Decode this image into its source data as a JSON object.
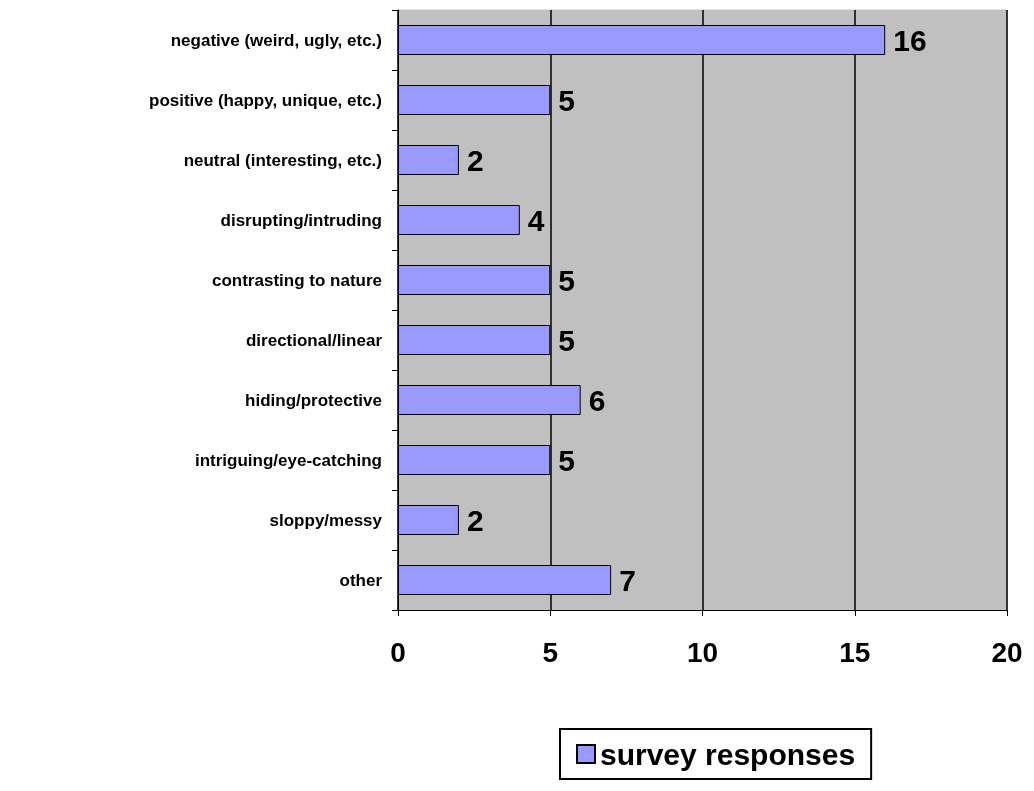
{
  "chart_data": {
    "type": "bar",
    "orientation": "horizontal",
    "categories": [
      "negative (weird, ugly, etc.)",
      "positive (happy, unique, etc.)",
      "neutral (interesting, etc.)",
      "disrupting/intruding",
      "contrasting to nature",
      "directional/linear",
      "hiding/protective",
      "intriguing/eye-catching",
      "sloppy/messy",
      "other"
    ],
    "series": [
      {
        "name": "survey responses",
        "color": "#9999ff",
        "values": [
          16,
          5,
          2,
          4,
          5,
          5,
          6,
          5,
          2,
          7
        ]
      }
    ],
    "xlim": [
      0,
      20
    ],
    "xticks": [
      0,
      5,
      10,
      15,
      20
    ],
    "grid": "x",
    "legend": "bottom",
    "data_labels": true
  }
}
